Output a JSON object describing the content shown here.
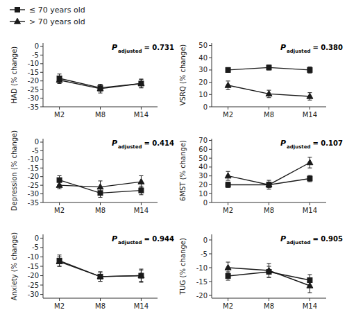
{
  "chart_data": [
    {
      "type": "line",
      "ylabel": "HAD (% change)",
      "categories": [
        "M2",
        "M8",
        "M14"
      ],
      "annotations": [
        "P",
        "adjusted",
        "= 0.731"
      ],
      "legend": "upper left",
      "ylim": [
        -35,
        2
      ],
      "yticks": [
        -35,
        -30,
        -25,
        -20,
        -15,
        -10,
        -5,
        0
      ],
      "series": [
        {
          "name": "≤ 70 years old",
          "color": "#1a1a1a",
          "marker": "square",
          "values": [
            -18.5,
            -24.0,
            -21.5
          ],
          "errors": [
            2.5,
            2.0,
            2.5
          ]
        },
        {
          "name": "> 70 years old",
          "color": "#1a1a1a",
          "marker": "triangle",
          "values": [
            -19.5,
            -24.5,
            -21.5
          ],
          "errors": [
            2.0,
            2.5,
            2.5
          ]
        }
      ]
    },
    {
      "type": "line",
      "ylabel": "VSRQ (% change)",
      "categories": [
        "M2",
        "M8",
        "M14"
      ],
      "annotations": [
        "P",
        "adjusted",
        "= 0.380"
      ],
      "ylim": [
        0,
        52
      ],
      "yticks": [
        0,
        10,
        20,
        30,
        40,
        50
      ],
      "series": [
        {
          "name": "≤ 70 years old",
          "color": "#1a1a1a",
          "marker": "square",
          "values": [
            30.0,
            32.0,
            30.0
          ],
          "errors": [
            2.0,
            2.0,
            2.5
          ]
        },
        {
          "name": "> 70 years old",
          "color": "#1a1a1a",
          "marker": "triangle",
          "values": [
            17.5,
            10.5,
            8.5
          ],
          "errors": [
            3.5,
            3.0,
            3.0
          ]
        }
      ]
    },
    {
      "type": "line",
      "ylabel": "Depression (% change)",
      "categories": [
        "M2",
        "M8",
        "M14"
      ],
      "annotations": [
        "P",
        "adjusted",
        "= 0.414"
      ],
      "ylim": [
        -35,
        2
      ],
      "yticks": [
        -35,
        -30,
        -25,
        -20,
        -15,
        -10,
        -5,
        0
      ],
      "series": [
        {
          "name": "≤ 70 years old",
          "color": "#1a1a1a",
          "marker": "square",
          "values": [
            -22.0,
            -29.5,
            -28.0
          ],
          "errors": [
            2.5,
            2.5,
            2.5
          ]
        },
        {
          "name": "> 70 years old",
          "color": "#1a1a1a",
          "marker": "triangle",
          "values": [
            -25.0,
            -26.0,
            -23.0
          ],
          "errors": [
            2.0,
            3.5,
            3.5
          ]
        }
      ]
    },
    {
      "type": "line",
      "ylabel": "6MST (% change)",
      "categories": [
        "M2",
        "M8",
        "M14"
      ],
      "annotations": [
        "P",
        "adjusted",
        "= 0.107"
      ],
      "ylim": [
        0,
        72
      ],
      "yticks": [
        0,
        10,
        20,
        30,
        40,
        50,
        60,
        70
      ],
      "series": [
        {
          "name": "≤ 70 years old",
          "color": "#1a1a1a",
          "marker": "square",
          "values": [
            20.0,
            20.0,
            27.0
          ],
          "errors": [
            3.0,
            3.0,
            3.5
          ]
        },
        {
          "name": "> 70 years old",
          "color": "#1a1a1a",
          "marker": "triangle",
          "values": [
            30.0,
            20.0,
            45.0
          ],
          "errors": [
            5.0,
            5.0,
            6.0
          ]
        }
      ]
    },
    {
      "type": "line",
      "ylabel": "Anxiety (% change)",
      "categories": [
        "M2",
        "M8",
        "M14"
      ],
      "annotations": [
        "P",
        "adjusted",
        "= 0.944"
      ],
      "ylim": [
        -32,
        2
      ],
      "yticks": [
        -30,
        -25,
        -20,
        -15,
        -10,
        -5,
        0
      ],
      "series": [
        {
          "name": "≤ 70 years old",
          "color": "#1a1a1a",
          "marker": "square",
          "values": [
            -12.0,
            -20.5,
            -20.0
          ],
          "errors": [
            3.0,
            2.5,
            3.0
          ]
        },
        {
          "name": "> 70 years old",
          "color": "#1a1a1a",
          "marker": "triangle",
          "values": [
            -12.5,
            -20.5,
            -20.0
          ],
          "errors": [
            2.5,
            2.5,
            3.5
          ]
        }
      ]
    },
    {
      "type": "line",
      "ylabel": "TUG (% change)",
      "categories": [
        "M2",
        "M8",
        "M14"
      ],
      "annotations": [
        "P",
        "adjusted",
        "= 0.905"
      ],
      "ylim": [
        -21,
        2
      ],
      "yticks": [
        -20,
        -15,
        -10,
        -5,
        0
      ],
      "series": [
        {
          "name": "≤ 70 years old",
          "color": "#1a1a1a",
          "marker": "square",
          "values": [
            -13.0,
            -11.5,
            -14.5
          ],
          "errors": [
            1.5,
            2.0,
            2.0
          ]
        },
        {
          "name": "> 70 years old",
          "color": "#1a1a1a",
          "marker": "triangle",
          "values": [
            -10.0,
            -11.0,
            -16.5
          ],
          "errors": [
            2.0,
            2.5,
            2.5
          ]
        }
      ]
    }
  ]
}
